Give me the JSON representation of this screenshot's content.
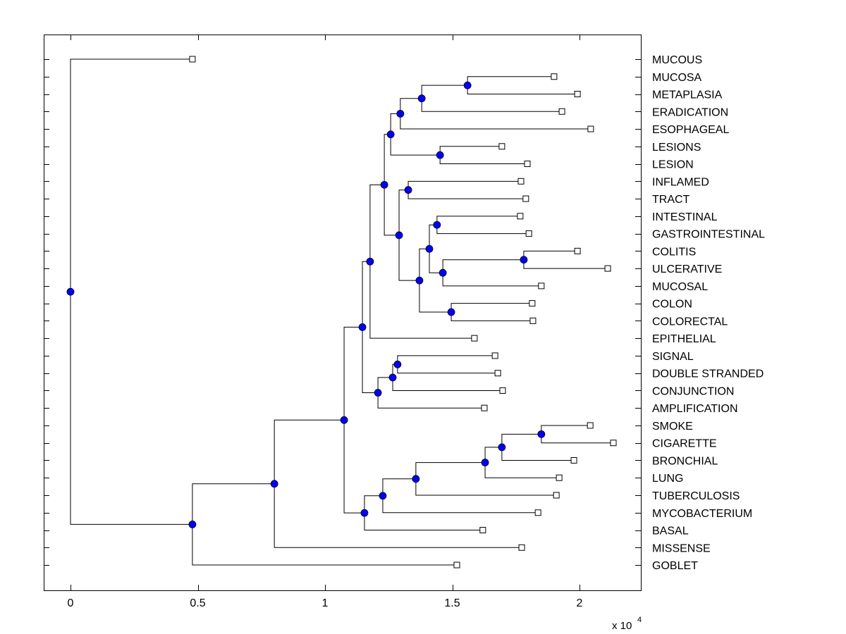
{
  "chart_data": {
    "type": "dendrogram",
    "title": "",
    "xlabel": "",
    "ylabel": "",
    "x_multiplier_label": "x 10",
    "x_multiplier_exponent": "4",
    "xlim": [
      -0.1,
      2.24
    ],
    "x_ticks": [
      0,
      0.5,
      1,
      1.5,
      2
    ],
    "x_tick_labels": [
      "0",
      "0.5",
      "1",
      "1.5",
      "2"
    ],
    "grid": false,
    "colors": {
      "node_fill": "#0000ff",
      "node_edge": "#000000",
      "leaf_fill": "#ffffff",
      "leaf_edge": "#000000",
      "line": "#000000"
    },
    "leaf_order": [
      "MUCOUS",
      "MUCOSA",
      "METAPLASIA",
      "ERADICATION",
      "ESOPHAGEAL",
      "LESIONS",
      "LESION",
      "INFLAMED",
      "TRACT",
      "INTESTINAL",
      "GASTROINTESTINAL",
      "COLITIS",
      "ULCERATIVE",
      "MUCOSAL",
      "COLON",
      "COLORECTAL",
      "EPITHELIAL",
      "SIGNAL",
      "DOUBLE STRANDED",
      "CONJUNCTION",
      "AMPLIFICATION",
      "SMOKE",
      "CIGARETTE",
      "BRONCHIAL",
      "LUNG",
      "TUBERCULOSIS",
      "MYCOBACTERIUM",
      "BASAL",
      "MISSENSE",
      "GOBLET"
    ],
    "tree": {
      "x": 0,
      "children": [
        {
          "leaf": "MUCOUS",
          "x": 0.479
        },
        {
          "x": 0.479,
          "children": [
            {
              "x": 0.801,
              "children": [
                {
                  "x": 1.075,
                  "children": [
                    {
                      "x": 1.147,
                      "children": [
                        {
                          "x": 1.177,
                          "children": [
                            {
                              "x": 1.233,
                              "children": [
                                {
                                  "x": 1.258,
                                  "children": [
                                    {
                                      "x": 1.296,
                                      "children": [
                                        {
                                          "x": 1.38,
                                          "children": [
                                            {
                                              "x": 1.56,
                                              "children": [
                                                {
                                                  "leaf": "MUCOSA",
                                                  "x": 1.9
                                                },
                                                {
                                                  "leaf": "METAPLASIA",
                                                  "x": 1.992
                                                }
                                              ]
                                            },
                                            {
                                              "leaf": "ERADICATION",
                                              "x": 1.931
                                            }
                                          ]
                                        },
                                        {
                                          "leaf": "ESOPHAGEAL",
                                          "x": 2.044
                                        }
                                      ]
                                    },
                                    {
                                      "x": 1.452,
                                      "children": [
                                        {
                                          "leaf": "LESIONS",
                                          "x": 1.695
                                        },
                                        {
                                          "leaf": "LESION",
                                          "x": 1.795
                                        }
                                      ]
                                    }
                                  ]
                                },
                                {
                                  "x": 1.291,
                                  "children": [
                                    {
                                      "x": 1.327,
                                      "children": [
                                        {
                                          "leaf": "INFLAMED",
                                          "x": 1.77
                                        },
                                        {
                                          "leaf": "TRACT",
                                          "x": 1.789
                                        }
                                      ]
                                    },
                                    {
                                      "x": 1.371,
                                      "children": [
                                        {
                                          "x": 1.41,
                                          "children": [
                                            {
                                              "x": 1.44,
                                              "children": [
                                                {
                                                  "leaf": "INTESTINAL",
                                                  "x": 1.767
                                                },
                                                {
                                                  "leaf": "GASTROINTESTINAL",
                                                  "x": 1.801
                                                }
                                              ]
                                            },
                                            {
                                              "x": 1.463,
                                              "children": [
                                                {
                                                  "x": 1.781,
                                                  "children": [
                                                    {
                                                      "leaf": "COLITIS",
                                                      "x": 1.992
                                                    },
                                                    {
                                                      "leaf": "ULCERATIVE",
                                                      "x": 2.111
                                                    }
                                                  ]
                                                },
                                                {
                                                  "leaf": "MUCOSAL",
                                                  "x": 1.85
                                                }
                                              ]
                                            }
                                          ]
                                        },
                                        {
                                          "x": 1.496,
                                          "children": [
                                            {
                                              "leaf": "COLON",
                                              "x": 1.814
                                            },
                                            {
                                              "leaf": "COLORECTAL",
                                              "x": 1.817
                                            }
                                          ]
                                        }
                                      ]
                                    }
                                  ]
                                }
                              ]
                            },
                            {
                              "leaf": "EPITHELIAL",
                              "x": 1.587
                            }
                          ]
                        },
                        {
                          "x": 1.208,
                          "children": [
                            {
                              "x": 1.266,
                              "children": [
                                {
                                  "x": 1.285,
                                  "children": [
                                    {
                                      "leaf": "SIGNAL",
                                      "x": 1.668
                                    },
                                    {
                                      "leaf": "DOUBLE STRANDED",
                                      "x": 1.679
                                    }
                                  ]
                                },
                                {
                                  "leaf": "CONJUNCTION",
                                  "x": 1.698
                                }
                              ]
                            },
                            {
                              "leaf": "AMPLIFICATION",
                              "x": 1.626
                            }
                          ]
                        }
                      ]
                    },
                    {
                      "x": 1.155,
                      "children": [
                        {
                          "x": 1.227,
                          "children": [
                            {
                              "x": 1.357,
                              "children": [
                                {
                                  "x": 1.629,
                                  "children": [
                                    {
                                      "x": 1.695,
                                      "children": [
                                        {
                                          "x": 1.85,
                                          "children": [
                                            {
                                              "leaf": "SMOKE",
                                              "x": 2.042
                                            },
                                            {
                                              "leaf": "CIGARETTE",
                                              "x": 2.133
                                            }
                                          ]
                                        },
                                        {
                                          "leaf": "BRONCHIAL",
                                          "x": 1.978
                                        }
                                      ]
                                    },
                                    {
                                      "leaf": "LUNG",
                                      "x": 1.92
                                    }
                                  ]
                                },
                                {
                                  "leaf": "TUBERCULOSIS",
                                  "x": 1.909
                                }
                              ]
                            },
                            {
                              "leaf": "MYCOBACTERIUM",
                              "x": 1.837
                            }
                          ]
                        },
                        {
                          "leaf": "BASAL",
                          "x": 1.62
                        }
                      ]
                    }
                  ]
                },
                {
                  "leaf": "MISSENSE",
                  "x": 1.773
                }
              ]
            },
            {
              "leaf": "GOBLET",
              "x": 1.518
            }
          ]
        }
      ]
    }
  }
}
